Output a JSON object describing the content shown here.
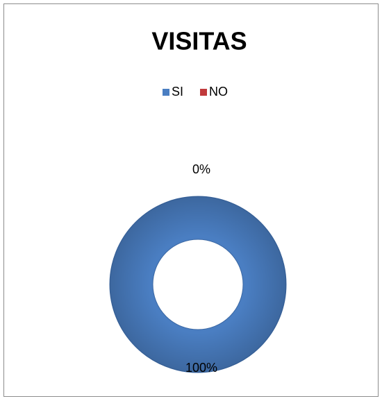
{
  "chart_data": {
    "type": "donut",
    "title": "VISITAS",
    "categories": [
      "SI",
      "NO"
    ],
    "values": [
      100,
      0
    ],
    "value_labels": [
      "100%",
      "0%"
    ],
    "colors": [
      "#4a7ec2",
      "#c0393b"
    ],
    "legend": "top"
  }
}
